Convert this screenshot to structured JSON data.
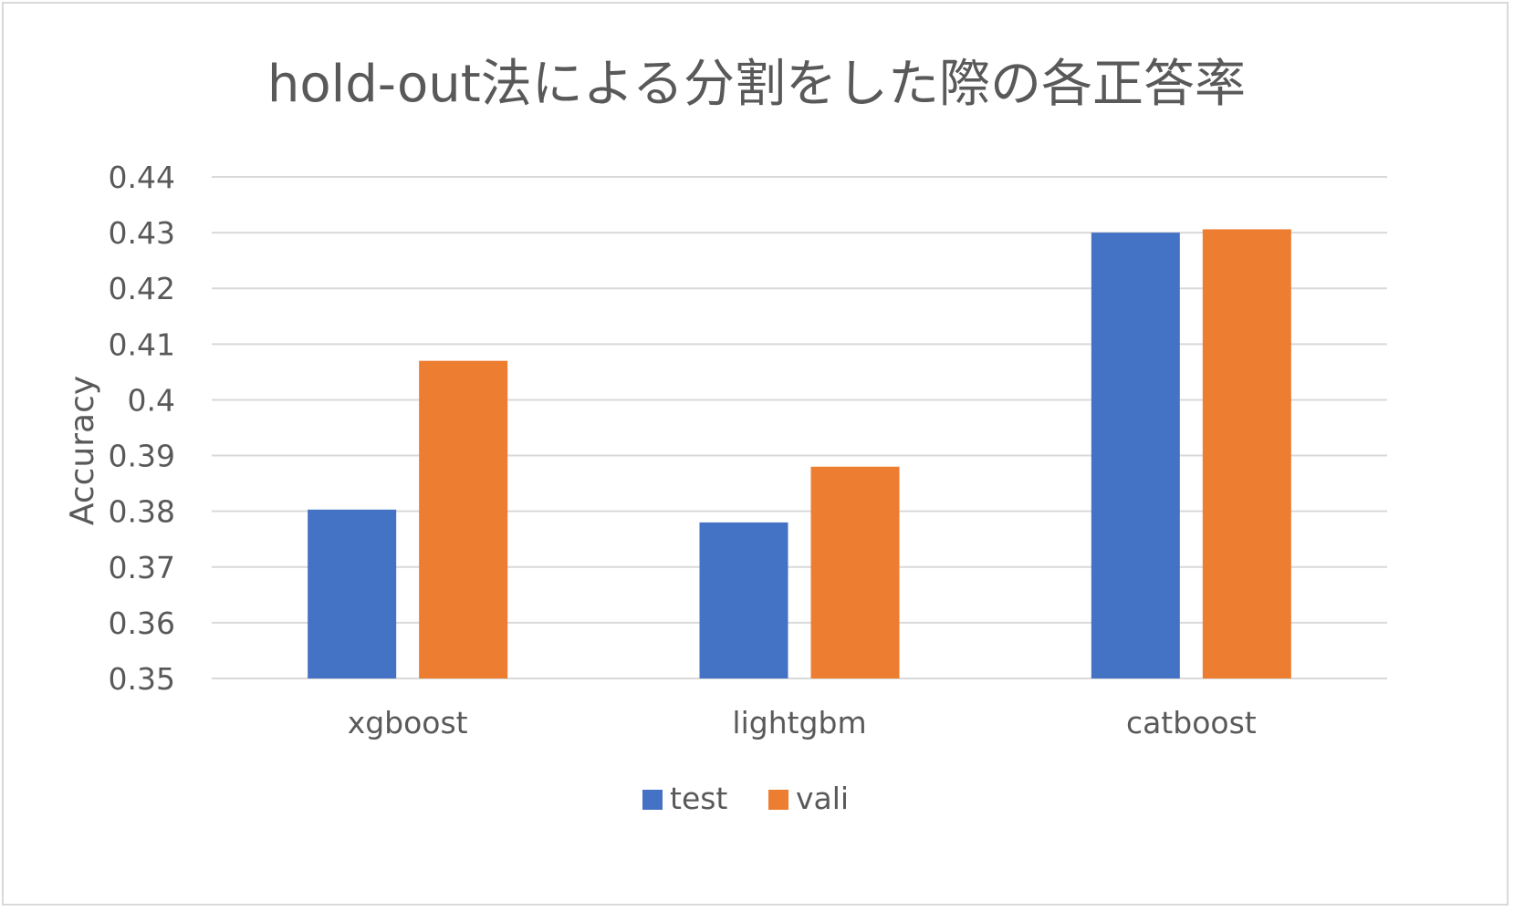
{
  "chart_data": {
    "type": "bar",
    "title": "hold-out法による分割をした際の各正答率",
    "xlabel": "",
    "ylabel": "Accuracy",
    "categories": [
      "xgboost",
      "lightgbm",
      "catboost"
    ],
    "series": [
      {
        "name": "test",
        "values": [
          0.3803,
          0.378,
          0.43
        ],
        "color": "#4472c4"
      },
      {
        "name": "vali",
        "values": [
          0.407,
          0.388,
          0.4306
        ],
        "color": "#ed7d31"
      }
    ],
    "ylim": [
      0.35,
      0.44
    ],
    "yticks": [
      "0.35",
      "0.36",
      "0.37",
      "0.38",
      "0.39",
      "0.4",
      "0.41",
      "0.42",
      "0.43",
      "0.44"
    ],
    "grid": true,
    "legend_position": "bottom",
    "colors": {
      "grid": "#d9d9d9",
      "text": "#595959",
      "title": "#595959"
    }
  }
}
